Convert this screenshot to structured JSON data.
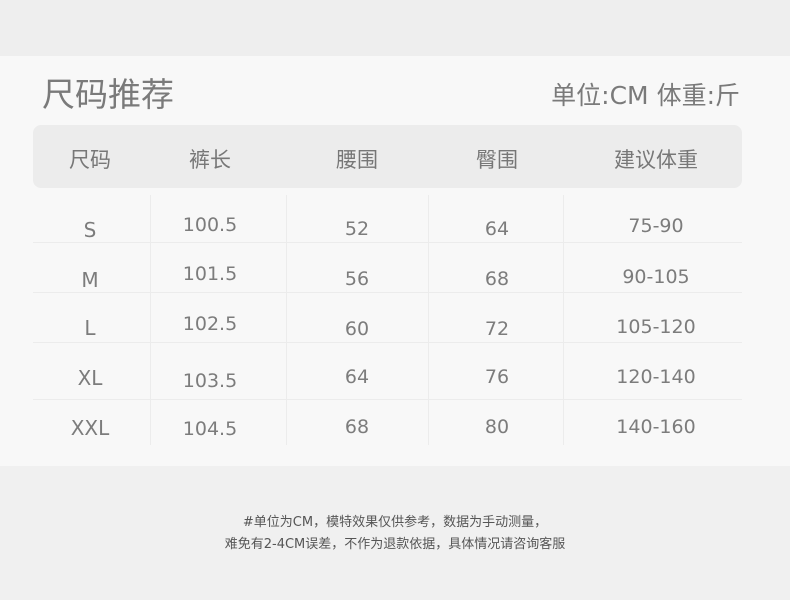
{
  "title": "尺码推荐",
  "unit_note": "单位:CM 体重:斤",
  "table": {
    "headers": [
      "尺码",
      "裤长",
      "腰围",
      "臀围",
      "建议体重"
    ],
    "rows": [
      [
        "S",
        "100.5",
        "52",
        "64",
        "75-90"
      ],
      [
        "M",
        "101.5",
        "56",
        "68",
        "90-105"
      ],
      [
        "L",
        "102.5",
        "60",
        "72",
        "105-120"
      ],
      [
        "XL",
        "103.5",
        "64",
        "76",
        "120-140"
      ],
      [
        "XXL",
        "104.5",
        "68",
        "80",
        "140-160"
      ]
    ]
  },
  "footer": {
    "line1": "#单位为CM，模特效果仅供参考，数据为手动测量，",
    "line2": "难免有2-4CM误差，不作为退款依据，具体情况请咨询客服"
  }
}
